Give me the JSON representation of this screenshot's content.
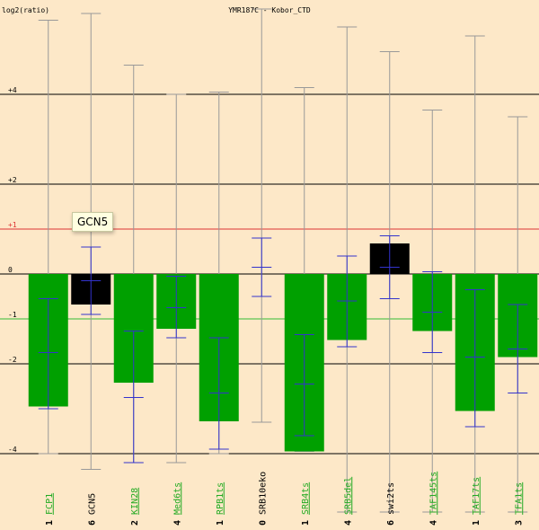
{
  "chart_data": {
    "type": "bar",
    "title": "YMR187C - Kobor_CTD",
    "ylabel": "log2(ratio)",
    "ylim": [
      -5.1,
      5.85
    ],
    "grid": true,
    "y_ticks": [
      {
        "value": 4,
        "label": "+4"
      },
      {
        "value": 2,
        "label": "+2"
      },
      {
        "value": 1,
        "label": "+1"
      },
      {
        "value": 0,
        "label": "0"
      },
      {
        "value": -1,
        "label": "-1"
      },
      {
        "value": -2,
        "label": "-2"
      },
      {
        "value": -4,
        "label": "-4"
      }
    ],
    "reference_lines": [
      {
        "value": 1,
        "color": "#dd3333"
      },
      {
        "value": -1,
        "color": "#33bb33"
      }
    ],
    "categories": [
      {
        "count": "1",
        "label": "FCP1",
        "value": -2.95,
        "ci": [
          -3.0,
          -0.55
        ],
        "mid": -1.75,
        "range": [
          -4.0,
          5.65
        ],
        "highlight": false
      },
      {
        "count": "6",
        "label": "GCN5",
        "value": -0.68,
        "ci": [
          -0.9,
          0.6
        ],
        "mid": -0.15,
        "range": [
          -4.35,
          5.8
        ],
        "highlight": true
      },
      {
        "count": "2",
        "label": "KIN28",
        "value": -2.42,
        "ci": [
          -4.2,
          -1.27
        ],
        "mid": -2.75,
        "range": [
          -4.2,
          4.65
        ],
        "highlight": false
      },
      {
        "count": "4",
        "label": "Med6ts",
        "value": -1.22,
        "ci": [
          -1.42,
          -0.05
        ],
        "mid": -0.75,
        "range": [
          -4.2,
          4.0
        ],
        "highlight": false
      },
      {
        "count": "1",
        "label": "RPB1ts",
        "value": -3.28,
        "ci": [
          -3.9,
          -1.42
        ],
        "mid": -2.65,
        "range": [
          -4.0,
          4.05
        ],
        "highlight": false
      },
      {
        "count": "0",
        "label": "SRB10eko",
        "value": 0,
        "ci": [
          -0.5,
          0.8
        ],
        "mid": 0.15,
        "range": [
          -3.3,
          5.9
        ],
        "highlight": false
      },
      {
        "count": "1",
        "label": "SRB4ts",
        "value": -3.95,
        "ci": [
          -3.6,
          -1.35
        ],
        "mid": -2.45,
        "range": [
          -3.95,
          4.15
        ],
        "highlight": false
      },
      {
        "count": "4",
        "label": "SRB5del",
        "value": -1.47,
        "ci": [
          -1.62,
          0.4
        ],
        "mid": -0.6,
        "range": [
          -5.3,
          5.5
        ],
        "highlight": false
      },
      {
        "count": "6",
        "label": "swi2ts",
        "value": 0.68,
        "ci": [
          -0.55,
          0.85
        ],
        "mid": 0.15,
        "range": [
          -5.3,
          4.95
        ],
        "highlight": false
      },
      {
        "count": "4",
        "label": "TAF145ts",
        "value": -1.27,
        "ci": [
          -1.75,
          0.05
        ],
        "mid": -0.85,
        "range": [
          -5.3,
          3.65
        ],
        "highlight": false
      },
      {
        "count": "1",
        "label": "TAF17ts",
        "value": -3.05,
        "ci": [
          -3.4,
          -0.35
        ],
        "mid": -1.85,
        "range": [
          -5.3,
          5.3
        ],
        "highlight": false
      },
      {
        "count": "3",
        "label": "TFA1ts",
        "value": -1.85,
        "ci": [
          -2.65,
          -0.68
        ],
        "mid": -1.67,
        "range": [
          -5.3,
          3.5
        ],
        "highlight": false
      }
    ],
    "colors": {
      "background": "#fde8c8",
      "bar": "#00a000",
      "highlight_bar": "#000000",
      "error_bar": "#3333cc",
      "range_line": "#999999",
      "grid": "#000000",
      "label_green": "#22aa22",
      "label_black": "#000000"
    }
  },
  "tooltip": {
    "text": "GCN5"
  }
}
